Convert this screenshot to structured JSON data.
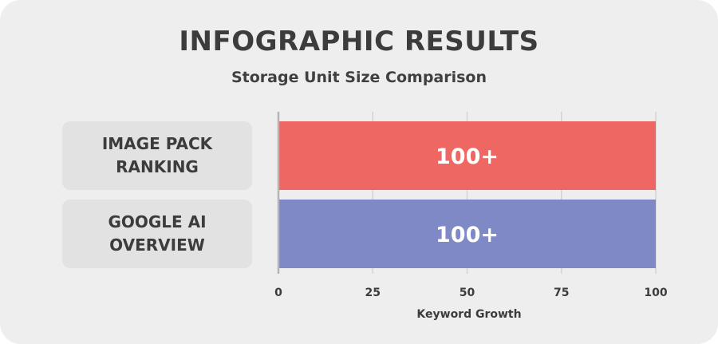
{
  "chart_data": {
    "type": "bar",
    "orientation": "horizontal",
    "title": "INFOGRAPHIC RESULTS",
    "subtitle": "Storage Unit Size Comparison",
    "categories": [
      "IMAGE PACK RANKING",
      "GOOGLE AI OVERVIEW"
    ],
    "values": [
      100,
      100
    ],
    "data_labels": [
      "100+",
      "100+"
    ],
    "bar_colors": [
      "#ee6762",
      "#7f89c6"
    ],
    "xlabel": "Keyword Growth",
    "ylabel": "",
    "xlim": [
      0,
      100
    ],
    "xticks": [
      0,
      25,
      50,
      75,
      100
    ],
    "xtick_labels": [
      "0",
      "25",
      "50",
      "75",
      "100"
    ],
    "grid": true
  },
  "colors": {
    "background": "#eeeeee",
    "label_box": "#e2e2e2",
    "text": "#3c3c3c",
    "grid": "#d3d3d3",
    "axis": "#b5b5b5"
  }
}
